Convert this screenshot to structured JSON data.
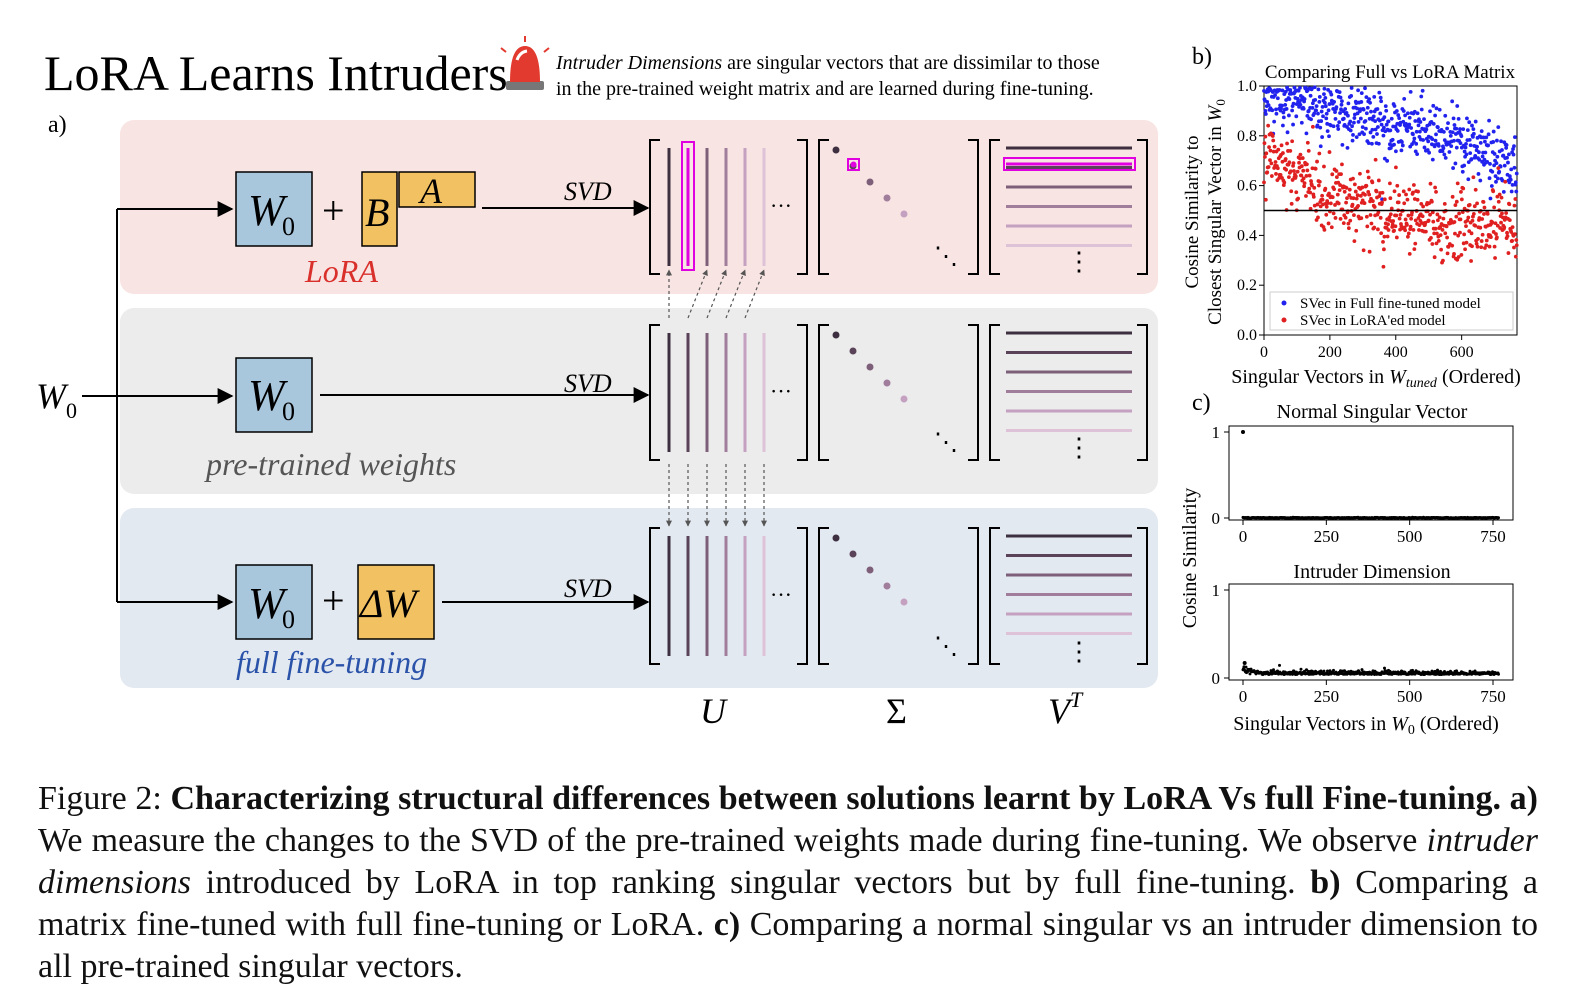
{
  "title": "LoRA Learns Intruders",
  "banner": {
    "term": "Intruder Dimensions",
    "line1_rest": " are singular vectors that are dissimilar to those",
    "line2": "in the pre-trained weight matrix and are learned during fine-tuning."
  },
  "panel_a": {
    "label": "a)",
    "input_label": "W",
    "input_sub": "0",
    "rows": [
      {
        "name": "LoRA",
        "color": "#d9302c",
        "svd": "SVD"
      },
      {
        "name": "pre-trained weights",
        "color": "#555555",
        "svd": "SVD"
      },
      {
        "name": "full fine-tuning",
        "color": "#2a52a8",
        "svd": "SVD"
      }
    ],
    "boxes": {
      "w0": "W",
      "w0_sub": "0",
      "plus": "+",
      "B": "B",
      "A": "A",
      "dW": "ΔW"
    },
    "matrix_labels": {
      "U": "U",
      "S": "Σ",
      "V": "V",
      "V_sup": "T"
    },
    "dots": "···",
    "vdots": "⋮",
    "ddots": "⋱"
  },
  "chart_data": [
    {
      "id": "b",
      "label": "b)",
      "type": "scatter",
      "title": "Comparing Full vs LoRA Matrix",
      "xlabel": "Singular Vectors in W_tuned (Ordered)",
      "xlabel_main": "Singular Vectors in ",
      "xlabel_var": "W",
      "xlabel_sub": "tuned",
      "xlabel_tail": " (Ordered)",
      "ylabel": "Cosine Similarity to Closest Singular Vector in W0",
      "ylabel_line1": "Cosine Similarity to",
      "ylabel_line2": "Closest Singular Vector in ",
      "ylabel_var": "W",
      "ylabel_sub": "0",
      "xlim": [
        0,
        768
      ],
      "ylim": [
        0,
        1.0
      ],
      "xticks": [
        "0",
        "200",
        "400",
        "600"
      ],
      "yticks": [
        "0.0",
        "0.2",
        "0.4",
        "0.6",
        "0.8",
        "1.0"
      ],
      "hline": 0.5,
      "legend": "bottom-right",
      "series": [
        {
          "name": "SVec in Full fine-tuned model",
          "color": "#2222ee",
          "trend": [
            [
              0,
              0.98
            ],
            [
              200,
              0.93
            ],
            [
              400,
              0.86
            ],
            [
              600,
              0.8
            ],
            [
              768,
              0.68
            ]
          ]
        },
        {
          "name": "SVec in LoRA'ed model",
          "color": "#e02020",
          "trend": [
            [
              0,
              0.72
            ],
            [
              200,
              0.57
            ],
            [
              400,
              0.47
            ],
            [
              600,
              0.45
            ],
            [
              768,
              0.42
            ]
          ]
        }
      ]
    },
    {
      "id": "c1",
      "label": "c)",
      "type": "scatter",
      "title": "Normal Singular Vector",
      "ylabel": "Cosine Similarity",
      "xlabel": "",
      "xlim": [
        0,
        768
      ],
      "ylim": [
        0,
        1
      ],
      "xticks": [
        "0",
        "250",
        "500",
        "750"
      ],
      "yticks": [
        "0",
        "1"
      ],
      "series": [
        {
          "name": "",
          "color": "#000000",
          "peak": [
            0,
            1.0
          ],
          "baseline": 0.0
        }
      ]
    },
    {
      "id": "c2",
      "type": "scatter",
      "title": "Intruder Dimension",
      "xlabel": "Singular Vectors in W0 (Ordered)",
      "xlabel_main": "Singular Vectors in ",
      "xlabel_var": "W",
      "xlabel_sub": "0",
      "xlabel_tail": " (Ordered)",
      "xlim": [
        0,
        768
      ],
      "ylim": [
        0,
        1
      ],
      "xticks": [
        "0",
        "250",
        "500",
        "750"
      ],
      "yticks": [
        "0",
        "1"
      ],
      "series": [
        {
          "name": "",
          "color": "#000000",
          "peak": [
            5,
            0.17
          ],
          "baseline": 0.04
        }
      ]
    }
  ],
  "caption": {
    "fig": "Figure 2: ",
    "bold_title": "Characterizing structural differences between solutions learnt by LoRA Vs full Fine-tuning.",
    "a_label": " a)",
    "a_text": " We measure the changes to the SVD of the pre-trained weights made during fine-tuning. We observe ",
    "a_ital": "intruder dimensions",
    "a_text2": " introduced by LoRA in top ranking singular vectors but by full fine-tuning. ",
    "b_label": "b)",
    "b_text": " Comparing a matrix fine-tuned with full fine-tuning or LoRA. ",
    "c_label": "c)",
    "c_text": " Comparing a normal singular vs an intruder dimension to all pre-trained singular vectors."
  }
}
